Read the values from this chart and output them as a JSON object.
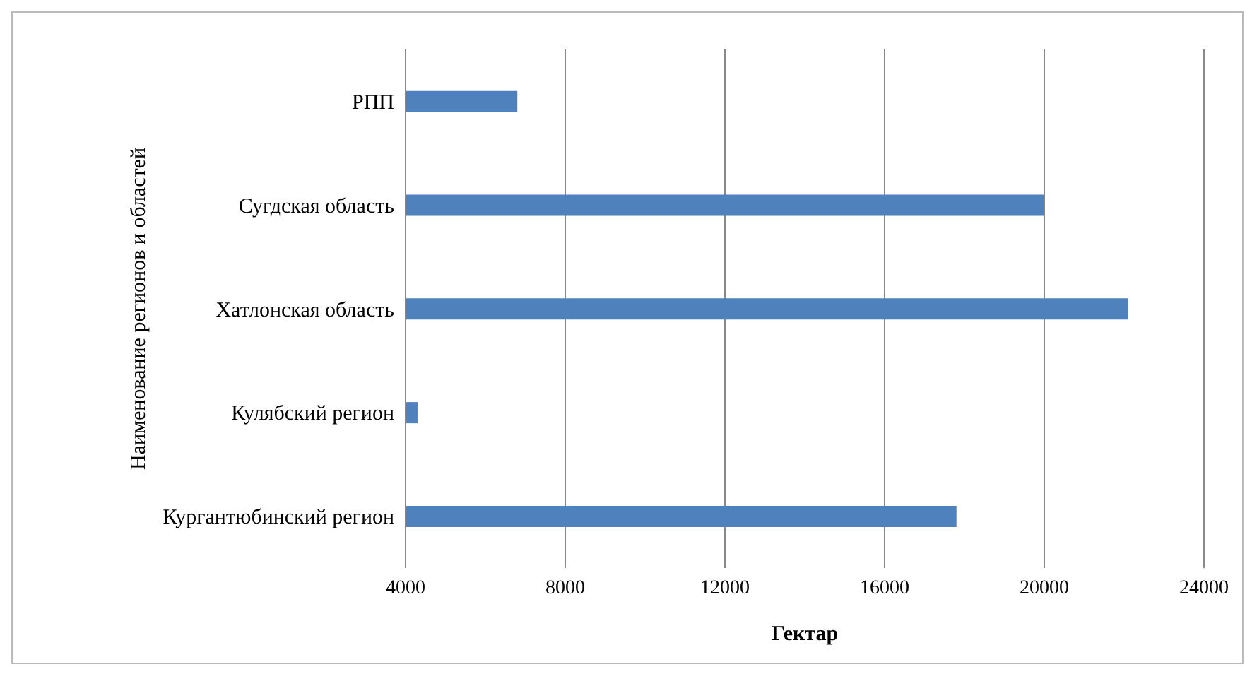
{
  "chart_data": {
    "type": "bar",
    "orientation": "horizontal",
    "xlabel": "Гектар",
    "ylabel": "Наименование регионов и областей",
    "categories": [
      "РПП",
      "Сугдская область",
      "Хатлонская область",
      "Кулябский регион",
      "Кургантюбинский регион"
    ],
    "values": [
      6800,
      20000,
      22100,
      4300,
      17800
    ],
    "color": "#4f81bd",
    "xlim": [
      4000,
      24000
    ],
    "xticks": [
      4000,
      8000,
      12000,
      16000,
      20000,
      24000
    ],
    "grid": "x"
  }
}
